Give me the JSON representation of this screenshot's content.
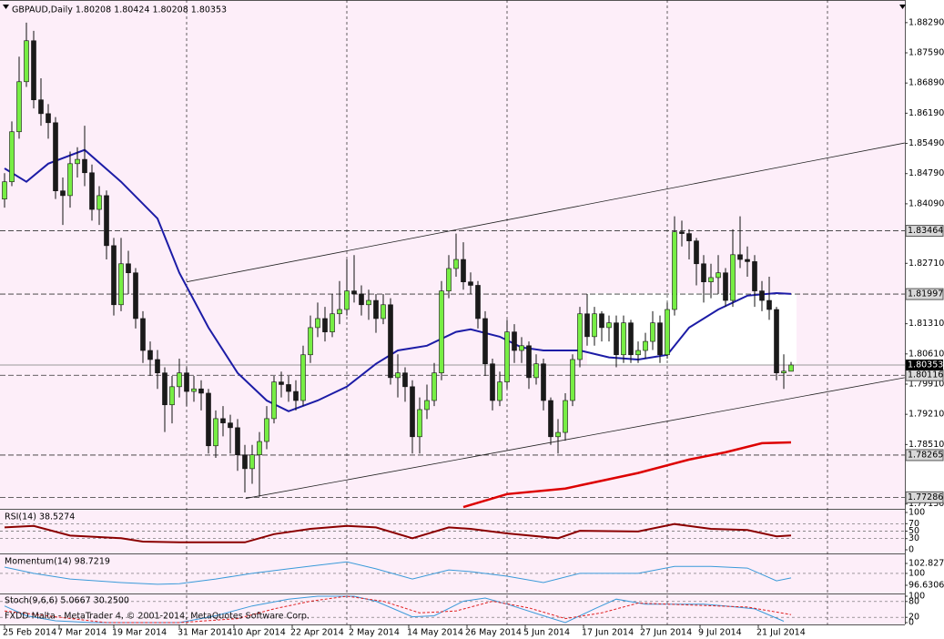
{
  "chart_data": [
    {
      "type": "candlestick",
      "title": "GBPAUD,Daily 1.80208 1.80424 1.80208 1.80353",
      "up_color": "#77ee44",
      "down_color": "#1a1a1a",
      "open": [
        1.842,
        1.846,
        1.8576,
        1.8692,
        1.8787,
        1.865,
        1.8618,
        1.8597,
        1.8439,
        1.8428,
        1.8502,
        1.8512,
        1.8481,
        1.8396,
        1.8428,
        1.8312,
        1.8175,
        1.827,
        1.8249,
        1.8143,
        1.8069,
        1.8048,
        1.8017,
        1.7943,
        1.7985,
        1.8017,
        1.7974,
        1.798,
        1.797,
        1.7848,
        1.7911,
        1.7901,
        1.789,
        1.7827,
        1.7795,
        1.7827,
        1.7858,
        1.7911,
        1.7996,
        1.799,
        1.7974,
        1.7953,
        1.8059,
        1.8122,
        1.8143,
        1.8112,
        1.8154,
        1.8164,
        1.8207,
        1.82,
        1.8175,
        1.8185,
        1.8143,
        1.8175,
        1.8006,
        1.8017,
        1.7985,
        1.7869,
        1.7932,
        1.7953,
        1.8017,
        1.8207,
        1.8259,
        1.828,
        1.8228,
        1.822,
        1.8143,
        1.8038,
        1.7953,
        1.7996,
        1.8112,
        1.8069,
        1.808,
        1.8006,
        1.8038,
        1.7953,
        1.7869,
        1.7879,
        1.7953,
        1.8048,
        1.8154,
        1.8101,
        1.8154,
        1.8122,
        1.8133,
        1.8059,
        1.8133,
        1.8059,
        1.8069,
        1.809,
        1.8133,
        1.8059,
        1.8164,
        1.8344,
        1.834,
        1.8323,
        1.827,
        1.8228,
        1.8238,
        1.8249,
        1.8185,
        1.8291,
        1.828,
        1.8275,
        1.8207,
        1.8185,
        1.8164,
        1.8017,
        1.80208
      ],
      "high": [
        1.848,
        1.86,
        1.875,
        1.8829,
        1.881,
        1.87,
        1.864,
        1.861,
        1.847,
        1.853,
        1.854,
        1.859,
        1.85,
        1.845,
        1.844,
        1.833,
        1.833,
        1.83,
        1.826,
        1.816,
        1.809,
        1.807,
        1.803,
        1.801,
        1.805,
        1.803,
        1.801,
        1.8,
        1.798,
        1.793,
        1.794,
        1.792,
        1.791,
        1.785,
        1.785,
        1.788,
        1.794,
        1.801,
        1.802,
        1.801,
        1.8,
        1.808,
        1.815,
        1.818,
        1.817,
        1.82,
        1.823,
        1.828,
        1.829,
        1.822,
        1.821,
        1.82,
        1.82,
        1.819,
        1.806,
        1.803,
        1.8,
        1.796,
        1.799,
        1.804,
        1.823,
        1.829,
        1.834,
        1.832,
        1.825,
        1.823,
        1.816,
        1.805,
        1.802,
        1.814,
        1.813,
        1.81,
        1.809,
        1.806,
        1.805,
        1.796,
        1.791,
        1.797,
        1.806,
        1.817,
        1.82,
        1.817,
        1.816,
        1.815,
        1.815,
        1.815,
        1.814,
        1.809,
        1.811,
        1.816,
        1.815,
        1.818,
        1.838,
        1.837,
        1.835,
        1.833,
        1.829,
        1.827,
        1.829,
        1.826,
        1.835,
        1.838,
        1.831,
        1.829,
        1.823,
        1.824,
        1.817,
        1.806,
        1.80424
      ],
      "low": [
        1.84,
        1.845,
        1.856,
        1.868,
        1.863,
        1.859,
        1.856,
        1.842,
        1.836,
        1.84,
        1.847,
        1.845,
        1.837,
        1.836,
        1.828,
        1.815,
        1.816,
        1.82,
        1.812,
        1.804,
        1.801,
        1.798,
        1.788,
        1.79,
        1.796,
        1.794,
        1.795,
        1.793,
        1.783,
        1.782,
        1.787,
        1.783,
        1.779,
        1.774,
        1.776,
        1.773,
        1.784,
        1.79,
        1.796,
        1.795,
        1.793,
        1.794,
        1.804,
        1.81,
        1.809,
        1.81,
        1.813,
        1.815,
        1.818,
        1.815,
        1.814,
        1.811,
        1.813,
        1.799,
        1.796,
        1.795,
        1.783,
        1.783,
        1.791,
        1.794,
        1.8,
        1.819,
        1.824,
        1.821,
        1.82,
        1.812,
        1.801,
        1.793,
        1.794,
        1.798,
        1.804,
        1.804,
        1.798,
        1.799,
        1.793,
        1.785,
        1.783,
        1.786,
        1.794,
        1.803,
        1.808,
        1.808,
        1.809,
        1.809,
        1.803,
        1.804,
        1.804,
        1.804,
        1.805,
        1.807,
        1.804,
        1.805,
        1.815,
        1.831,
        1.828,
        1.822,
        1.818,
        1.819,
        1.82,
        1.817,
        1.817,
        1.826,
        1.824,
        1.817,
        1.816,
        1.814,
        1.8,
        1.798,
        1.80208
      ],
      "close": [
        1.846,
        1.8576,
        1.8692,
        1.8787,
        1.865,
        1.8618,
        1.8597,
        1.8439,
        1.8428,
        1.8502,
        1.8512,
        1.8481,
        1.8396,
        1.8428,
        1.8312,
        1.8175,
        1.827,
        1.8249,
        1.8143,
        1.8069,
        1.8048,
        1.8017,
        1.7943,
        1.7985,
        1.8017,
        1.7974,
        1.798,
        1.797,
        1.7848,
        1.7911,
        1.7901,
        1.789,
        1.7827,
        1.7795,
        1.7827,
        1.7858,
        1.7911,
        1.7996,
        1.799,
        1.7974,
        1.7953,
        1.8059,
        1.8122,
        1.8143,
        1.8112,
        1.8154,
        1.8164,
        1.8207,
        1.82,
        1.8175,
        1.8185,
        1.8143,
        1.8175,
        1.8006,
        1.8017,
        1.7985,
        1.7869,
        1.7932,
        1.7953,
        1.8017,
        1.8207,
        1.8259,
        1.828,
        1.8228,
        1.822,
        1.8143,
        1.8038,
        1.7953,
        1.7996,
        1.8112,
        1.8069,
        1.808,
        1.8006,
        1.8038,
        1.7953,
        1.7869,
        1.7879,
        1.7953,
        1.8048,
        1.8154,
        1.8101,
        1.8154,
        1.8122,
        1.8133,
        1.8059,
        1.8133,
        1.8059,
        1.8069,
        1.809,
        1.8133,
        1.8059,
        1.8164,
        1.8344,
        1.834,
        1.8323,
        1.827,
        1.8228,
        1.8238,
        1.8249,
        1.8185,
        1.8291,
        1.828,
        1.8275,
        1.8207,
        1.8185,
        1.8164,
        1.8017,
        1.8021,
        1.80353
      ],
      "series": [
        {
          "color": "#1c1ca6",
          "x": [
            0,
            3,
            6,
            11,
            16,
            21,
            24,
            28,
            32,
            36,
            39,
            43,
            47,
            51,
            54,
            58,
            62,
            64,
            68,
            71,
            74,
            79,
            83,
            87,
            91,
            94,
            98,
            102,
            106,
            108
          ],
          "values": [
            1.8491,
            1.846,
            1.8502,
            1.8534,
            1.846,
            1.8375,
            1.8249,
            1.8122,
            1.8017,
            1.7953,
            1.7928,
            1.7953,
            1.7985,
            1.8038,
            1.8069,
            1.808,
            1.8112,
            1.8118,
            1.8101,
            1.8076,
            1.8069,
            1.8069,
            1.8053,
            1.8048,
            1.8059,
            1.8122,
            1.8164,
            1.8196,
            1.8202,
            1.82
          ]
        },
        {
          "color": "#dd0000",
          "x": [
            63,
            69,
            77,
            87,
            94,
            99,
            104,
            108
          ],
          "values": [
            1.7706,
            1.7736,
            1.7749,
            1.7785,
            1.7816,
            1.7833,
            1.7854,
            1.7856
          ]
        }
      ],
      "trendlines": [
        {
          "x": [
            25,
            123.6
          ],
          "values": [
            1.8228,
            1.855
          ]
        },
        {
          "x": [
            33.1,
            123.6
          ],
          "values": [
            1.7726,
            1.8006
          ]
        }
      ],
      "levels": [
        1.83464,
        1.81997,
        1.80116,
        1.78265,
        1.77286
      ],
      "ylim": [
        1.7704,
        1.8873
      ],
      "yticks": [
        {
          "value": 1.8829,
          "label": "1.88290"
        },
        {
          "value": 1.8759,
          "label": "1.87590"
        },
        {
          "value": 1.8689,
          "label": "1.86890"
        },
        {
          "value": 1.8619,
          "label": "1.86190"
        },
        {
          "value": 1.8549,
          "label": "1.85490"
        },
        {
          "value": 1.8479,
          "label": "1.84790"
        },
        {
          "value": 1.8409,
          "label": "1.84090"
        },
        {
          "value": 1.8271,
          "label": "1.82710"
        },
        {
          "value": 1.8131,
          "label": "1.81310"
        },
        {
          "value": 1.8061,
          "label": "1.80610"
        },
        {
          "value": 1.7991,
          "label": "1.79910"
        },
        {
          "value": 1.7921,
          "label": "1.79210"
        },
        {
          "value": 1.7851,
          "label": "1.78510"
        },
        {
          "value": 1.7713,
          "label": "1.77130"
        }
      ],
      "xticks": [
        {
          "value": 0,
          "label": "25 Feb 2014"
        },
        {
          "value": 7.5,
          "label": "7 Mar 2014"
        },
        {
          "value": 15,
          "label": "19 Mar 2014"
        },
        {
          "value": 24,
          "label": "31 Mar 2014"
        },
        {
          "value": 31.5,
          "label": "10 Apr 2014"
        },
        {
          "value": 39.5,
          "label": "22 Apr 2014"
        },
        {
          "value": 47.5,
          "label": "2 May 2014"
        },
        {
          "value": 55.5,
          "label": "14 May 2014"
        },
        {
          "value": 63.5,
          "label": "26 May 2014"
        },
        {
          "value": 71.5,
          "label": "5 Jun 2014"
        },
        {
          "value": 79.5,
          "label": "17 Jun 2014"
        },
        {
          "value": 87.5,
          "label": "27 Jun 2014"
        },
        {
          "value": 95.5,
          "label": "9 Jul 2014"
        },
        {
          "value": 103.5,
          "label": "21 Jul 2014"
        }
      ],
      "xgrid": [
        25,
        47,
        69,
        91,
        113
      ],
      "grid": true
    },
    {
      "type": "line",
      "title": "RSI(14) 38.5274",
      "x": [
        0,
        4,
        9,
        16,
        19,
        24,
        33,
        37,
        42,
        47,
        51,
        56,
        61,
        64,
        69,
        76,
        79,
        87,
        92,
        97,
        102,
        106,
        108
      ],
      "series": [
        {
          "color": "#8b0000",
          "width": 2,
          "values": [
            60,
            64,
            38,
            31,
            22,
            20,
            20,
            42,
            56,
            64,
            60,
            31,
            60,
            56,
            44,
            31,
            51,
            49,
            69,
            56,
            53,
            36,
            38.5274
          ]
        }
      ],
      "ylim": [
        0,
        100
      ],
      "yticks": [
        0,
        30,
        50,
        70,
        100
      ],
      "levels": [
        30,
        50,
        70
      ]
    },
    {
      "type": "line",
      "title": "Momentum(14) 98.7219",
      "x": [
        0,
        4,
        9,
        16,
        21,
        24,
        29,
        34,
        39,
        43,
        47,
        51,
        56,
        61,
        64,
        69,
        74,
        79,
        87,
        92,
        97,
        102,
        106,
        108
      ],
      "series": [
        {
          "color": "#3a9ad9",
          "width": 1,
          "values": [
            101.8,
            100.0,
            98.4,
            97.4,
            96.9,
            97.1,
            98.4,
            100.0,
            101.3,
            102.3,
            103.3,
            101.3,
            98.4,
            101.0,
            100.5,
            99.2,
            97.4,
            100.0,
            100.0,
            102.0,
            102.0,
            101.5,
            97.9,
            98.7219
          ]
        }
      ],
      "ylim": [
        94.82,
        104.63
      ],
      "yticks": [
        96.6306,
        100,
        102.827
      ],
      "levels": [
        100
      ]
    },
    {
      "type": "line",
      "title": "Stoch(9,6,6) 5.0667 30.2500",
      "series": [
        {
          "color": "#3a9ad9",
          "width": 1,
          "x": [
            0,
            3,
            7,
            12,
            19,
            24,
            29,
            34,
            39,
            43,
            48,
            51,
            56,
            59,
            63,
            66,
            69,
            74,
            77,
            81,
            84,
            88,
            92,
            96,
            99,
            103,
            107
          ],
          "values": [
            63,
            26,
            7,
            0,
            0,
            0,
            26,
            63,
            89,
            100,
            100,
            81,
            22,
            26,
            81,
            93,
            70,
            26,
            0,
            52,
            89,
            70,
            70,
            70,
            63,
            52,
            5.0667
          ]
        },
        {
          "color": "#e02020",
          "width": 1,
          "dash": true,
          "x": [
            0,
            7,
            14,
            24,
            32,
            37,
            42,
            47,
            52,
            57,
            62,
            67,
            72,
            77,
            82,
            87,
            94,
            102,
            108
          ],
          "values": [
            44,
            22,
            0,
            0,
            15,
            52,
            81,
            100,
            81,
            37,
            44,
            81,
            56,
            15,
            37,
            74,
            67,
            59,
            30.25
          ]
        }
      ],
      "ylim": [
        0,
        100
      ],
      "yticks": [
        0,
        20,
        80,
        100
      ],
      "levels": [
        20,
        80
      ]
    }
  ],
  "footer": "FXDD Malta - MetaTrader 4, © 2001-2014, MetaQuotes Software Corp."
}
